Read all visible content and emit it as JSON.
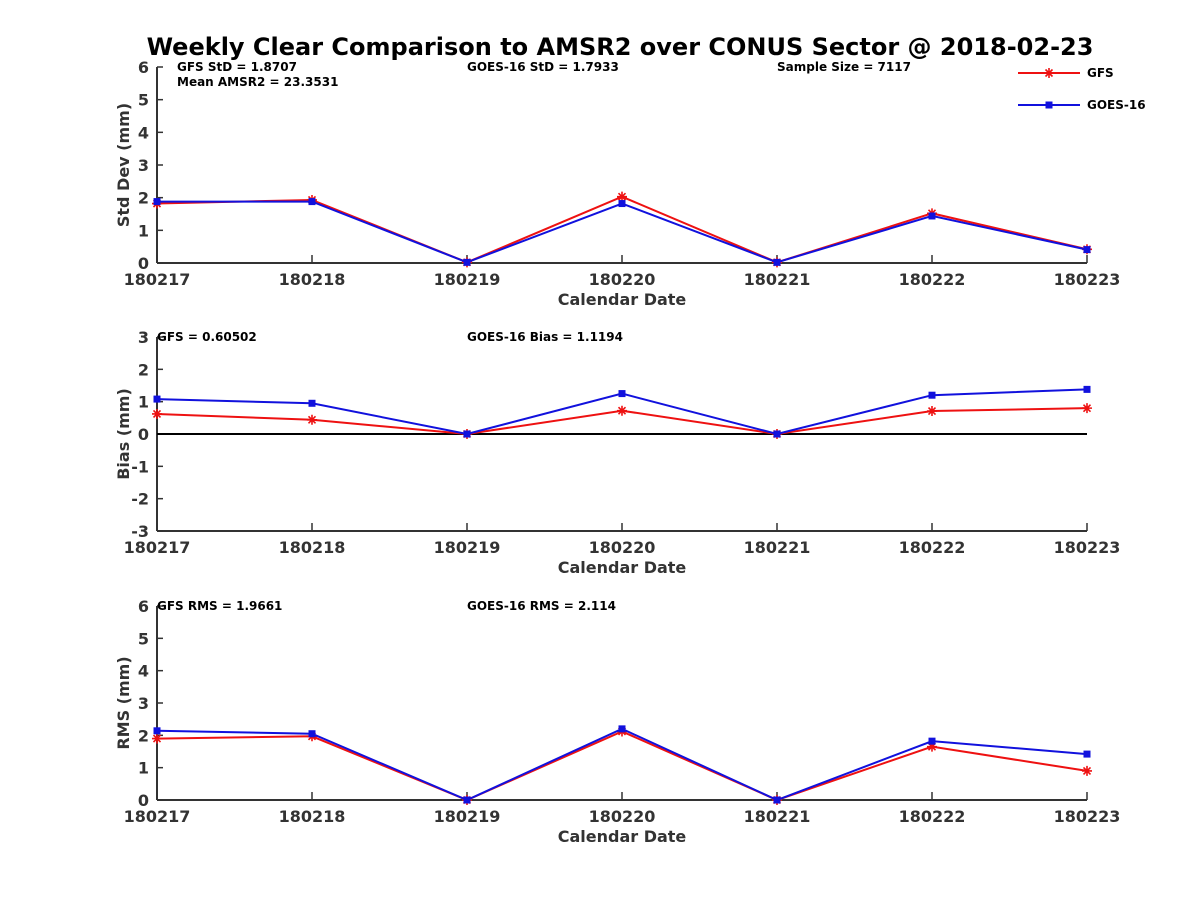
{
  "title": "Weekly Clear Comparison to AMSR2 over CONUS Sector @ 2018-02-23",
  "legend": {
    "placement": "top-right",
    "items": [
      {
        "label": "GFS",
        "color": "#ee1111",
        "marker": "asterisk"
      },
      {
        "label": "GOES-16",
        "color": "#1111dd",
        "marker": "square"
      }
    ]
  },
  "chart_data": [
    {
      "type": "line",
      "ylabel": "Std Dev (mm)",
      "xlabel": "Calendar Date",
      "categories": [
        "180217",
        "180218",
        "180219",
        "180220",
        "180221",
        "180222",
        "180223"
      ],
      "ylim": [
        0,
        6
      ],
      "yticks": [
        "0",
        "1",
        "2",
        "3",
        "4",
        "5",
        "6"
      ],
      "zero_line": false,
      "annotations": [
        "GFS StD = 1.8707",
        "Mean AMSR2 = 23.3531",
        "GOES-16 StD = 1.7933",
        "Sample Size = 7117"
      ],
      "series": [
        {
          "name": "GFS",
          "values": [
            1.82,
            1.93,
            0.02,
            2.03,
            0.02,
            1.52,
            0.42
          ]
        },
        {
          "name": "GOES-16",
          "values": [
            1.88,
            1.88,
            0.02,
            1.82,
            0.02,
            1.44,
            0.41
          ]
        }
      ]
    },
    {
      "type": "line",
      "ylabel": "Bias (mm)",
      "xlabel": "Calendar Date",
      "categories": [
        "180217",
        "180218",
        "180219",
        "180220",
        "180221",
        "180222",
        "180223"
      ],
      "ylim": [
        -3,
        3
      ],
      "yticks": [
        "-3",
        "-2",
        "-1",
        "0",
        "1",
        "2",
        "3"
      ],
      "zero_line": true,
      "annotations": [
        "GFS = 0.60502",
        "GOES-16 Bias  = 1.1194"
      ],
      "series": [
        {
          "name": "GFS",
          "values": [
            0.62,
            0.44,
            0.0,
            0.72,
            0.0,
            0.71,
            0.8
          ]
        },
        {
          "name": "GOES-16",
          "values": [
            1.08,
            0.95,
            0.0,
            1.25,
            0.0,
            1.2,
            1.38
          ]
        }
      ]
    },
    {
      "type": "line",
      "ylabel": "RMS (mm)",
      "xlabel": "Calendar Date",
      "categories": [
        "180217",
        "180218",
        "180219",
        "180220",
        "180221",
        "180222",
        "180223"
      ],
      "ylim": [
        0,
        6
      ],
      "yticks": [
        "0",
        "1",
        "2",
        "3",
        "4",
        "5",
        "6"
      ],
      "zero_line": false,
      "annotations": [
        "GFS RMS = 1.9661",
        "GOES-16 RMS = 2.114"
      ],
      "series": [
        {
          "name": "GFS",
          "values": [
            1.9,
            1.97,
            0.0,
            2.12,
            0.0,
            1.65,
            0.9
          ]
        },
        {
          "name": "GOES-16",
          "values": [
            2.14,
            2.05,
            0.0,
            2.2,
            0.0,
            1.82,
            1.42
          ]
        }
      ]
    }
  ]
}
